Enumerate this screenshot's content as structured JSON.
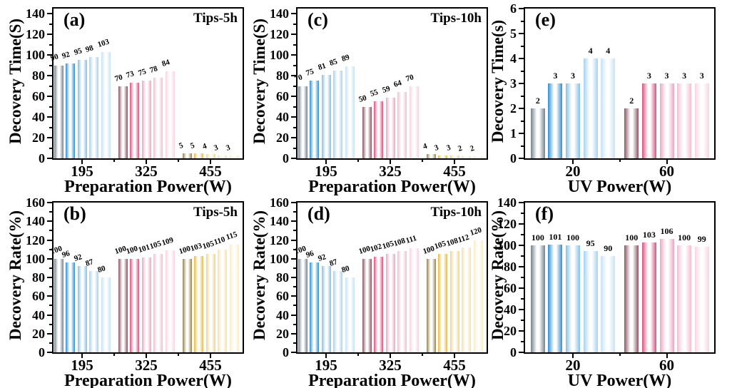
{
  "figure": {
    "background": "#ffffff"
  },
  "palette": {
    "blue": [
      "#76848f",
      "#2f8fd2",
      "#85c0e8",
      "#a8d2f0",
      "#c6e2f6"
    ],
    "pink": [
      "#8d5664",
      "#d85480",
      "#eba6c1",
      "#f2bed2",
      "#f7d4e1"
    ],
    "yellow": [
      "#97854f",
      "#e4bd49",
      "#efd48a",
      "#f4e2ab",
      "#f8edc8"
    ]
  },
  "chart_data": [
    {
      "type": "bar",
      "panel": "a",
      "corner_label": "(a)",
      "annotation": "Tips-5h",
      "ylabel": "Decovery Time(S)",
      "xlabel": "Preparation Power(W)",
      "ylim": [
        0,
        145
      ],
      "ytick_step": 20,
      "grid": false,
      "legend": false,
      "ytick_labels": [
        "0",
        "20",
        "40",
        "60",
        "80",
        "100",
        "120",
        "140"
      ],
      "groups": [
        {
          "x": "195",
          "color_family": "blue",
          "values": [
            90,
            92,
            95,
            98,
            103
          ]
        },
        {
          "x": "325",
          "color_family": "pink",
          "values": [
            70,
            73,
            75,
            78,
            84
          ]
        },
        {
          "x": "455",
          "color_family": "yellow",
          "values": [
            5,
            5,
            4,
            3,
            3
          ]
        }
      ],
      "value_labels_rotated": true,
      "narrow_left_margin": false
    },
    {
      "type": "bar",
      "panel": "c",
      "corner_label": "(c)",
      "annotation": "Tips-10h",
      "ylabel": "Decovery Time(S)",
      "xlabel": "Preparation Power(W)",
      "ylim": [
        0,
        145
      ],
      "ytick_step": 20,
      "grid": false,
      "legend": false,
      "ytick_labels": [
        "0",
        "20",
        "40",
        "60",
        "80",
        "100",
        "120",
        "140"
      ],
      "groups": [
        {
          "x": "195",
          "color_family": "blue",
          "values": [
            70,
            75,
            81,
            85,
            89
          ]
        },
        {
          "x": "325",
          "color_family": "pink",
          "values": [
            50,
            55,
            59,
            64,
            70
          ]
        },
        {
          "x": "455",
          "color_family": "yellow",
          "values": [
            4,
            3,
            3,
            2,
            2
          ]
        }
      ],
      "value_labels_rotated": true,
      "narrow_left_margin": false
    },
    {
      "type": "bar",
      "panel": "e",
      "corner_label": "(e)",
      "annotation": "",
      "ylabel": "Decovery Time(s)",
      "xlabel": "UV Power(W)",
      "ylim": [
        0,
        6
      ],
      "ytick_step": 1,
      "grid": false,
      "legend": false,
      "ytick_labels": [
        "0",
        "1",
        "2",
        "3",
        "4",
        "5",
        "6"
      ],
      "groups": [
        {
          "x": "20",
          "color_family": "blue",
          "values": [
            2,
            3,
            3,
            4,
            4
          ]
        },
        {
          "x": "60",
          "color_family": "pink",
          "values": [
            2,
            3,
            3,
            3,
            3
          ]
        }
      ],
      "value_labels_rotated": false,
      "narrow_left_margin": true
    },
    {
      "type": "bar",
      "panel": "b",
      "corner_label": "(b)",
      "annotation": "Tips-5h",
      "ylabel": "Decovery Rate(%)",
      "xlabel": "Preparation Power(W)",
      "ylim": [
        0,
        160
      ],
      "ytick_step": 20,
      "grid": false,
      "legend": false,
      "ytick_labels": [
        "0",
        "20",
        "40",
        "60",
        "80",
        "100",
        "120",
        "140",
        "160"
      ],
      "groups": [
        {
          "x": "195",
          "color_family": "blue",
          "values": [
            100,
            96,
            92,
            87,
            80
          ]
        },
        {
          "x": "325",
          "color_family": "pink",
          "values": [
            100,
            100,
            101,
            105,
            109
          ]
        },
        {
          "x": "455",
          "color_family": "yellow",
          "values": [
            100,
            103,
            105,
            110,
            115
          ]
        }
      ],
      "value_labels_rotated": true,
      "narrow_left_margin": false
    },
    {
      "type": "bar",
      "panel": "d",
      "corner_label": "(d)",
      "annotation": "Tips-10h",
      "ylabel": "Decovery Rate(%)",
      "xlabel": "Preparation Power(W)",
      "ylim": [
        0,
        160
      ],
      "ytick_step": 20,
      "grid": false,
      "legend": false,
      "ytick_labels": [
        "0",
        "20",
        "40",
        "60",
        "80",
        "100",
        "120",
        "140",
        "160"
      ],
      "groups": [
        {
          "x": "195",
          "color_family": "blue",
          "values": [
            100,
            96,
            92,
            87,
            80
          ]
        },
        {
          "x": "325",
          "color_family": "pink",
          "values": [
            100,
            102,
            105,
            108,
            111
          ]
        },
        {
          "x": "455",
          "color_family": "yellow",
          "values": [
            100,
            105,
            108,
            112,
            120
          ]
        }
      ],
      "value_labels_rotated": true,
      "narrow_left_margin": false
    },
    {
      "type": "bar",
      "panel": "f",
      "corner_label": "(f)",
      "annotation": "",
      "ylabel": "Decovery Rate(%)",
      "xlabel": "UV Power(W)",
      "ylim": [
        0,
        140
      ],
      "ytick_step": 20,
      "grid": false,
      "legend": false,
      "ytick_labels": [
        "0",
        "20",
        "40",
        "60",
        "80",
        "100",
        "120",
        "140"
      ],
      "groups": [
        {
          "x": "20",
          "color_family": "blue",
          "values": [
            100,
            101,
            100,
            95,
            90
          ]
        },
        {
          "x": "60",
          "color_family": "pink",
          "values": [
            100,
            103,
            106,
            100,
            99
          ]
        }
      ],
      "value_labels_rotated": false,
      "narrow_left_margin": true
    }
  ]
}
